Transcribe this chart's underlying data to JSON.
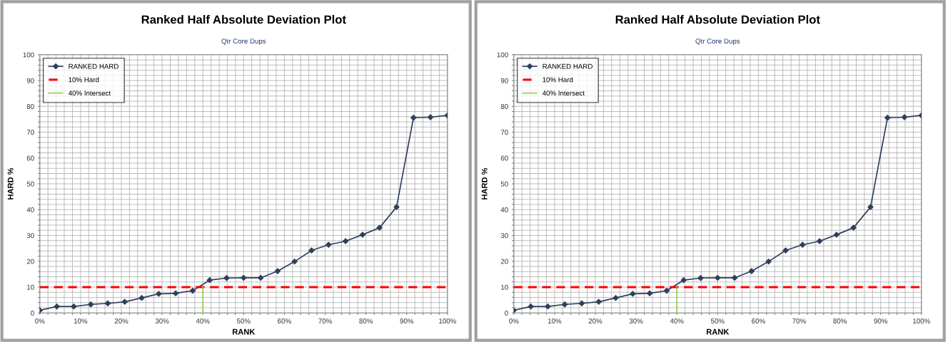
{
  "chart_data": [
    {
      "type": "line",
      "title": "Ranked Half Absolute Deviation Plot",
      "subtitle": "Qtr Core Dups",
      "xlabel": "RANK",
      "ylabel": "HARD %",
      "xlim": [
        0,
        100
      ],
      "ylim": [
        0,
        100
      ],
      "xticks": [
        {
          "value": 0,
          "label": "0%"
        },
        {
          "value": 2,
          "label": null
        },
        {
          "value": 4,
          "label": null
        },
        {
          "value": 6,
          "label": null
        },
        {
          "value": 8,
          "label": null
        },
        {
          "value": 10,
          "label": "10%"
        },
        {
          "value": 12,
          "label": null
        },
        {
          "value": 14,
          "label": null
        },
        {
          "value": 16,
          "label": null
        },
        {
          "value": 18,
          "label": null
        },
        {
          "value": 20,
          "label": "20%"
        },
        {
          "value": 22,
          "label": null
        },
        {
          "value": 24,
          "label": null
        },
        {
          "value": 26,
          "label": null
        },
        {
          "value": 28,
          "label": null
        },
        {
          "value": 30,
          "label": "30%"
        },
        {
          "value": 32,
          "label": null
        },
        {
          "value": 34,
          "label": null
        },
        {
          "value": 36,
          "label": null
        },
        {
          "value": 38,
          "label": null
        },
        {
          "value": 40,
          "label": "40%"
        },
        {
          "value": 42,
          "label": null
        },
        {
          "value": 44,
          "label": null
        },
        {
          "value": 46,
          "label": null
        },
        {
          "value": 48,
          "label": null
        },
        {
          "value": 50,
          "label": "50%"
        },
        {
          "value": 52,
          "label": null
        },
        {
          "value": 54,
          "label": null
        },
        {
          "value": 56,
          "label": null
        },
        {
          "value": 58,
          "label": null
        },
        {
          "value": 60,
          "label": "60%"
        },
        {
          "value": 62,
          "label": null
        },
        {
          "value": 64,
          "label": null
        },
        {
          "value": 66,
          "label": null
        },
        {
          "value": 68,
          "label": null
        },
        {
          "value": 70,
          "label": "70%"
        },
        {
          "value": 72,
          "label": null
        },
        {
          "value": 74,
          "label": null
        },
        {
          "value": 76,
          "label": null
        },
        {
          "value": 78,
          "label": null
        },
        {
          "value": 80,
          "label": "80%"
        },
        {
          "value": 82,
          "label": null
        },
        {
          "value": 84,
          "label": null
        },
        {
          "value": 86,
          "label": null
        },
        {
          "value": 88,
          "label": null
        },
        {
          "value": 90,
          "label": "90%"
        },
        {
          "value": 92,
          "label": null
        },
        {
          "value": 94,
          "label": null
        },
        {
          "value": 96,
          "label": null
        },
        {
          "value": 98,
          "label": null
        },
        {
          "value": 100,
          "label": "100%"
        }
      ],
      "yticks": [
        0,
        {
          "value": 2,
          "label": null
        },
        {
          "value": 4,
          "label": null
        },
        {
          "value": 6,
          "label": null
        },
        {
          "value": 8,
          "label": null
        },
        10,
        {
          "value": 12,
          "label": null
        },
        {
          "value": 14,
          "label": null
        },
        {
          "value": 16,
          "label": null
        },
        {
          "value": 18,
          "label": null
        },
        20,
        {
          "value": 22,
          "label": null
        },
        {
          "value": 24,
          "label": null
        },
        {
          "value": 26,
          "label": null
        },
        {
          "value": 28,
          "label": null
        },
        30,
        {
          "value": 32,
          "label": null
        },
        {
          "value": 34,
          "label": null
        },
        {
          "value": 36,
          "label": null
        },
        {
          "value": 38,
          "label": null
        },
        40,
        {
          "value": 42,
          "label": null
        },
        {
          "value": 44,
          "label": null
        },
        {
          "value": 46,
          "label": null
        },
        {
          "value": 48,
          "label": null
        },
        50,
        {
          "value": 52,
          "label": null
        },
        {
          "value": 54,
          "label": null
        },
        {
          "value": 56,
          "label": null
        },
        {
          "value": 58,
          "label": null
        },
        60,
        {
          "value": 62,
          "label": null
        },
        {
          "value": 64,
          "label": null
        },
        {
          "value": 66,
          "label": null
        },
        {
          "value": 68,
          "label": null
        },
        70,
        {
          "value": 72,
          "label": null
        },
        {
          "value": 74,
          "label": null
        },
        {
          "value": 76,
          "label": null
        },
        {
          "value": 78,
          "label": null
        },
        80,
        {
          "value": 82,
          "label": null
        },
        {
          "value": 84,
          "label": null
        },
        {
          "value": 86,
          "label": null
        },
        {
          "value": 88,
          "label": null
        },
        90,
        {
          "value": 92,
          "label": null
        },
        {
          "value": 94,
          "label": null
        },
        {
          "value": 96,
          "label": null
        },
        {
          "value": 98,
          "label": null
        },
        100
      ],
      "grid": true,
      "legend": "top left",
      "series": [
        {
          "name": "RANKED HARD",
          "color": "#2f3f5c",
          "marker": "diamond",
          "line_style": "solid",
          "x": [
            0,
            4.17,
            8.33,
            12.5,
            16.67,
            20.83,
            25,
            29.17,
            33.33,
            37.5,
            41.67,
            45.83,
            50,
            54.17,
            58.33,
            62.5,
            66.67,
            70.83,
            75,
            79.17,
            83.33,
            87.5,
            91.67,
            95.83,
            100
          ],
          "values": [
            1,
            2.5,
            2.5,
            3.3,
            3.7,
            4.3,
            5.8,
            7.4,
            7.6,
            8.6,
            12.7,
            13.5,
            13.6,
            13.6,
            16.2,
            19.9,
            24.2,
            26.4,
            27.8,
            30.3,
            33,
            41,
            75.6,
            75.8,
            76.5
          ]
        },
        {
          "name": "10% Hard",
          "color": "#ff0000",
          "marker": "none",
          "line_style": "dashed",
          "x": [
            0,
            100
          ],
          "values": [
            10,
            10
          ]
        },
        {
          "name": "40% Intersect",
          "color": "#92d050",
          "marker": "none",
          "line_style": "solid",
          "x": [
            40,
            40
          ],
          "values": [
            0,
            10
          ]
        }
      ]
    },
    {
      "type": "line",
      "title": "Ranked Half Absolute Deviation Plot",
      "subtitle": "Qtr Core Dups",
      "xlabel": "RANK",
      "ylabel": "HARD %",
      "xlim": [
        0,
        100
      ],
      "ylim": [
        0,
        100
      ],
      "xticks": [
        {
          "value": 0,
          "label": "0%"
        },
        {
          "value": 2,
          "label": null
        },
        {
          "value": 4,
          "label": null
        },
        {
          "value": 6,
          "label": null
        },
        {
          "value": 8,
          "label": null
        },
        {
          "value": 10,
          "label": "10%"
        },
        {
          "value": 12,
          "label": null
        },
        {
          "value": 14,
          "label": null
        },
        {
          "value": 16,
          "label": null
        },
        {
          "value": 18,
          "label": null
        },
        {
          "value": 20,
          "label": "20%"
        },
        {
          "value": 22,
          "label": null
        },
        {
          "value": 24,
          "label": null
        },
        {
          "value": 26,
          "label": null
        },
        {
          "value": 28,
          "label": null
        },
        {
          "value": 30,
          "label": "30%"
        },
        {
          "value": 32,
          "label": null
        },
        {
          "value": 34,
          "label": null
        },
        {
          "value": 36,
          "label": null
        },
        {
          "value": 38,
          "label": null
        },
        {
          "value": 40,
          "label": "40%"
        },
        {
          "value": 42,
          "label": null
        },
        {
          "value": 44,
          "label": null
        },
        {
          "value": 46,
          "label": null
        },
        {
          "value": 48,
          "label": null
        },
        {
          "value": 50,
          "label": "50%"
        },
        {
          "value": 52,
          "label": null
        },
        {
          "value": 54,
          "label": null
        },
        {
          "value": 56,
          "label": null
        },
        {
          "value": 58,
          "label": null
        },
        {
          "value": 60,
          "label": "60%"
        },
        {
          "value": 62,
          "label": null
        },
        {
          "value": 64,
          "label": null
        },
        {
          "value": 66,
          "label": null
        },
        {
          "value": 68,
          "label": null
        },
        {
          "value": 70,
          "label": "70%"
        },
        {
          "value": 72,
          "label": null
        },
        {
          "value": 74,
          "label": null
        },
        {
          "value": 76,
          "label": null
        },
        {
          "value": 78,
          "label": null
        },
        {
          "value": 80,
          "label": "80%"
        },
        {
          "value": 82,
          "label": null
        },
        {
          "value": 84,
          "label": null
        },
        {
          "value": 86,
          "label": null
        },
        {
          "value": 88,
          "label": null
        },
        {
          "value": 90,
          "label": "90%"
        },
        {
          "value": 92,
          "label": null
        },
        {
          "value": 94,
          "label": null
        },
        {
          "value": 96,
          "label": null
        },
        {
          "value": 98,
          "label": null
        },
        {
          "value": 100,
          "label": "100%"
        }
      ],
      "yticks": [
        0,
        {
          "value": 2,
          "label": null
        },
        {
          "value": 4,
          "label": null
        },
        {
          "value": 6,
          "label": null
        },
        {
          "value": 8,
          "label": null
        },
        10,
        {
          "value": 12,
          "label": null
        },
        {
          "value": 14,
          "label": null
        },
        {
          "value": 16,
          "label": null
        },
        {
          "value": 18,
          "label": null
        },
        20,
        {
          "value": 22,
          "label": null
        },
        {
          "value": 24,
          "label": null
        },
        {
          "value": 26,
          "label": null
        },
        {
          "value": 28,
          "label": null
        },
        30,
        {
          "value": 32,
          "label": null
        },
        {
          "value": 34,
          "label": null
        },
        {
          "value": 36,
          "label": null
        },
        {
          "value": 38,
          "label": null
        },
        40,
        {
          "value": 42,
          "label": null
        },
        {
          "value": 44,
          "label": null
        },
        {
          "value": 46,
          "label": null
        },
        {
          "value": 48,
          "label": null
        },
        50,
        {
          "value": 52,
          "label": null
        },
        {
          "value": 54,
          "label": null
        },
        {
          "value": 56,
          "label": null
        },
        {
          "value": 58,
          "label": null
        },
        60,
        {
          "value": 62,
          "label": null
        },
        {
          "value": 64,
          "label": null
        },
        {
          "value": 66,
          "label": null
        },
        {
          "value": 68,
          "label": null
        },
        70,
        {
          "value": 72,
          "label": null
        },
        {
          "value": 74,
          "label": null
        },
        {
          "value": 76,
          "label": null
        },
        {
          "value": 78,
          "label": null
        },
        80,
        {
          "value": 82,
          "label": null
        },
        {
          "value": 84,
          "label": null
        },
        {
          "value": 86,
          "label": null
        },
        {
          "value": 88,
          "label": null
        },
        90,
        {
          "value": 92,
          "label": null
        },
        {
          "value": 94,
          "label": null
        },
        {
          "value": 96,
          "label": null
        },
        {
          "value": 98,
          "label": null
        },
        100
      ],
      "grid": true,
      "legend": "top left",
      "series": [
        {
          "name": "RANKED HARD",
          "color": "#2f3f5c",
          "marker": "diamond",
          "line_style": "solid",
          "x": [
            0,
            4.17,
            8.33,
            12.5,
            16.67,
            20.83,
            25,
            29.17,
            33.33,
            37.5,
            41.67,
            45.83,
            50,
            54.17,
            58.33,
            62.5,
            66.67,
            70.83,
            75,
            79.17,
            83.33,
            87.5,
            91.67,
            95.83,
            100
          ],
          "values": [
            1,
            2.5,
            2.5,
            3.3,
            3.7,
            4.3,
            5.8,
            7.4,
            7.6,
            8.6,
            12.7,
            13.5,
            13.6,
            13.6,
            16.2,
            19.9,
            24.2,
            26.4,
            27.8,
            30.3,
            33,
            41,
            75.6,
            75.8,
            76.5
          ]
        },
        {
          "name": "10% Hard",
          "color": "#ff0000",
          "marker": "none",
          "line_style": "dashed",
          "x": [
            0,
            100
          ],
          "values": [
            10,
            10
          ]
        },
        {
          "name": "40% Intersect",
          "color": "#92d050",
          "marker": "none",
          "line_style": "solid",
          "x": [
            40,
            40
          ],
          "values": [
            0,
            10
          ]
        }
      ]
    }
  ]
}
